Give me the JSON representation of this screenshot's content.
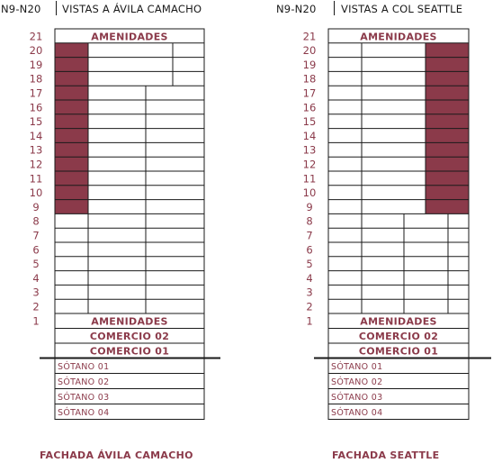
{
  "colors": {
    "accent": "#8b3a4a",
    "line": "#1a1a1a",
    "highlight": "#8b3a4a"
  },
  "left": {
    "code": "N9-N20",
    "heading": "VISTAS A ÁVILA CAMACHO",
    "top_band": "AMENIDADES",
    "lower_bands": [
      "AMENIDADES",
      "COMERCIO 02",
      "COMERCIO 01"
    ],
    "basements": [
      "SÓTANO 01",
      "SÓTANO 02",
      "SÓTANO 03",
      "SÓTANO 04"
    ],
    "footer": "FACHADA ÁVILA CAMACHO",
    "highlight_side": "left",
    "highlight_floors": [
      9,
      20
    ]
  },
  "right": {
    "code": "N9-N20",
    "heading": "VISTAS A COL SEATTLE",
    "top_band": "AMENIDADES",
    "lower_bands": [
      "AMENIDADES",
      "COMERCIO 02",
      "COMERCIO 01"
    ],
    "basements": [
      "SÓTANO 01",
      "SÓTANO 02",
      "SÓTANO 03",
      "SÓTANO 04"
    ],
    "footer": "FACHADA SEATTLE",
    "highlight_side": "right",
    "highlight_floors": [
      9,
      20
    ]
  },
  "floors": [
    "21",
    "20",
    "19",
    "18",
    "17",
    "16",
    "15",
    "14",
    "13",
    "12",
    "11",
    "10",
    "9",
    "8",
    "7",
    "6",
    "5",
    "4",
    "3",
    "2",
    "1"
  ]
}
